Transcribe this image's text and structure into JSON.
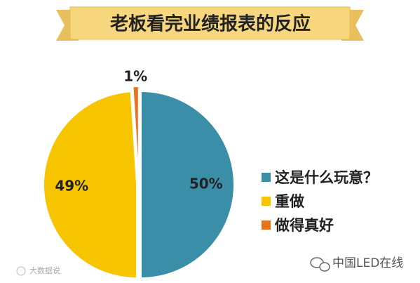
{
  "chart_data": {
    "type": "pie",
    "title": "老板看完业绩报表的反应",
    "categories": [
      "这是什么玩意？",
      "重做",
      "做得真好"
    ],
    "values": [
      50,
      49,
      1
    ],
    "value_labels": [
      "50%",
      "49%",
      "1%"
    ],
    "colors": [
      "#3a8ea8",
      "#f6c500",
      "#e8731f"
    ],
    "legend": "right"
  },
  "watermarks": [
    "大数据说",
    "中国LED在线"
  ]
}
